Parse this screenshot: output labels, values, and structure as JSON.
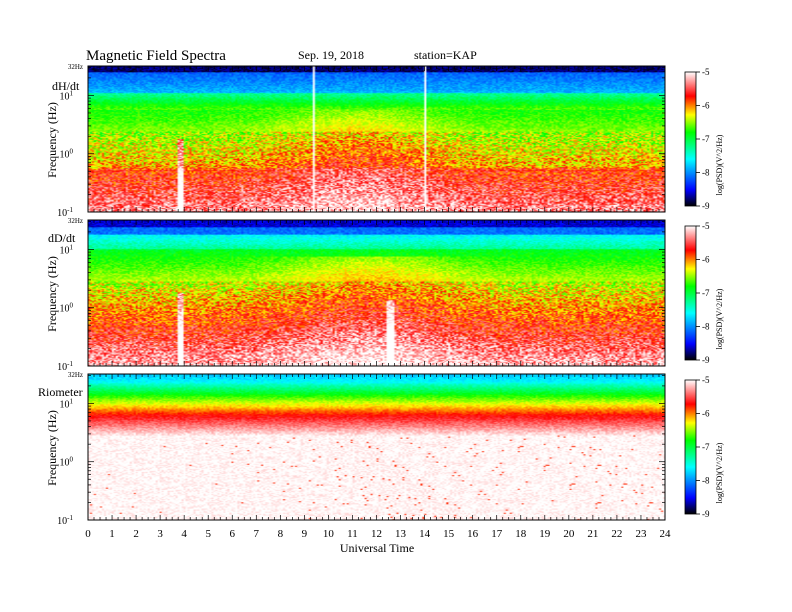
{
  "header": {
    "title": "Magnetic  Field  Spectra",
    "date": "Sep. 19, 2018",
    "station": "station=KAP"
  },
  "chart_data": {
    "type": "heatmap",
    "xlabel": "Universal Time",
    "xlim": [
      0,
      24
    ],
    "x_ticks": [
      "0",
      "1",
      "2",
      "3",
      "4",
      "5",
      "6",
      "7",
      "8",
      "9",
      "10",
      "11",
      "12",
      "13",
      "14",
      "15",
      "16",
      "17",
      "18",
      "19",
      "20",
      "21",
      "22",
      "23",
      "24"
    ],
    "ylabel": "Frequency  (Hz)",
    "y_scale": "log",
    "ylim": [
      0.1,
      32
    ],
    "colorbar": {
      "label": "log(PSD)(V^2/Hz)",
      "range": [
        -9,
        -5
      ],
      "ticks": [
        "-5",
        "-6",
        "-7",
        "-8",
        "-9"
      ],
      "colors": [
        "#000000",
        "#0000ff",
        "#00ffff",
        "#00ff00",
        "#ffff00",
        "#ff0000",
        "#ffffff"
      ]
    },
    "panels": [
      {
        "label": "dH/dt",
        "top_label": "32Hz",
        "y_ticks": [
          {
            "base": "10",
            "exp": "1"
          },
          {
            "base": "10",
            "exp": "0"
          },
          {
            "base": "10",
            "exp": "-1"
          }
        ],
        "gaps_ut": [
          9.4,
          14.0
        ],
        "events_ut": [
          3.8,
          12.6
        ]
      },
      {
        "label": "dD/dt",
        "top_label": "32Hz",
        "y_ticks": [
          {
            "base": "10",
            "exp": "1"
          },
          {
            "base": "10",
            "exp": "0"
          },
          {
            "base": "10",
            "exp": "-1"
          }
        ],
        "gaps_ut": [],
        "events_ut": [
          3.8,
          12.6
        ]
      },
      {
        "label": "Riometer",
        "top_label": "32Hz",
        "y_ticks": [
          {
            "base": "10",
            "exp": "1"
          },
          {
            "base": "10",
            "exp": "0"
          },
          {
            "base": "10",
            "exp": "-1"
          }
        ],
        "gaps_ut": [],
        "events_ut": []
      }
    ]
  }
}
